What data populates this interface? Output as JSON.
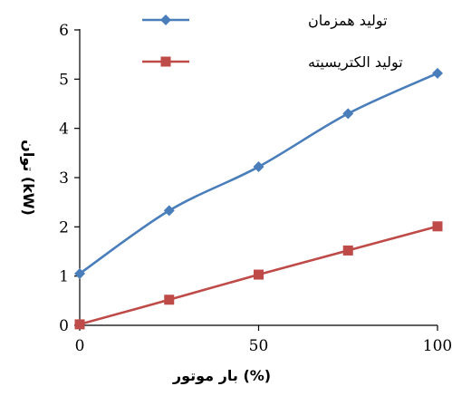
{
  "chart_data": {
    "type": "line",
    "title": "",
    "xlabel": "بار موتور (%)",
    "ylabel": "توان (kW)",
    "xlim": [
      0,
      100
    ],
    "ylim": [
      0,
      6
    ],
    "xticks": [
      0,
      50,
      100
    ],
    "yticks": [
      0,
      1,
      2,
      3,
      4,
      5,
      6
    ],
    "grid": false,
    "legend_position": "top-right",
    "x": [
      0,
      25,
      50,
      75,
      100
    ],
    "series": [
      {
        "name": "تولید همزمان",
        "values": [
          1.05,
          2.33,
          3.22,
          4.3,
          5.12
        ],
        "color": "#4a7ebb",
        "marker": "diamond"
      },
      {
        "name": "تولید الکتریسیته",
        "values": [
          0.02,
          0.52,
          1.03,
          1.52,
          2.01
        ],
        "color": "#be4b48",
        "marker": "square"
      }
    ]
  }
}
